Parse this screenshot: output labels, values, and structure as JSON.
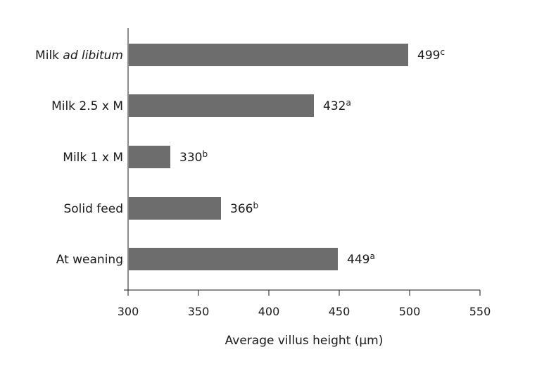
{
  "chart_data": {
    "type": "bar",
    "orientation": "horizontal",
    "categories": [
      {
        "label": "Milk ",
        "label_italic": "ad libitum"
      },
      {
        "label": "Milk 2.5 x M",
        "label_italic": ""
      },
      {
        "label": "Milk 1 x M",
        "label_italic": ""
      },
      {
        "label": "Solid feed",
        "label_italic": ""
      },
      {
        "label": "At weaning",
        "label_italic": ""
      }
    ],
    "values": [
      499,
      432,
      330,
      366,
      449
    ],
    "superscripts": [
      "c",
      "a",
      "b",
      "b",
      "a"
    ],
    "xlabel": "Average villus height (μm)",
    "xlim": [
      300,
      550
    ],
    "xticks": [
      300,
      350,
      400,
      450,
      500,
      550
    ],
    "bar_color": "#6e6d6e",
    "grid": false
  }
}
